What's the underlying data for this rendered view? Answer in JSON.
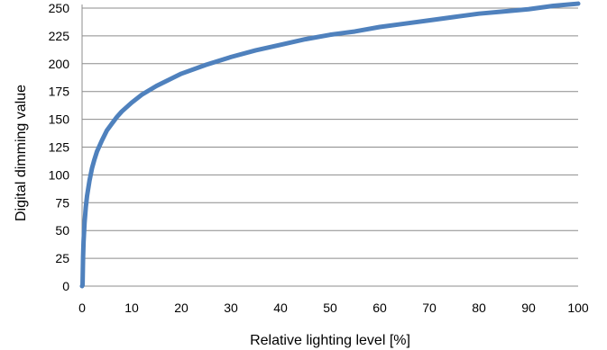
{
  "chart_data": {
    "type": "line",
    "title": "",
    "xlabel": "Relative lighting level [%]",
    "ylabel": "Digital dimming value",
    "xlim": [
      0,
      100
    ],
    "ylim": [
      0,
      250
    ],
    "xticks": [
      "0",
      "10",
      "20",
      "30",
      "40",
      "50",
      "60",
      "70",
      "80",
      "90",
      "100"
    ],
    "yticks": [
      "0",
      "25",
      "50",
      "75",
      "100",
      "125",
      "150",
      "175",
      "200",
      "225",
      "250"
    ],
    "grid": true,
    "legend": "none",
    "series": [
      {
        "color": "#4f81bd",
        "points": [
          [
            0.0,
            0
          ],
          [
            0.1,
            1
          ],
          [
            0.2,
            26
          ],
          [
            0.3,
            40
          ],
          [
            0.5,
            57
          ],
          [
            0.75,
            71
          ],
          [
            1,
            81
          ],
          [
            1.5,
            95
          ],
          [
            2,
            106
          ],
          [
            2.5,
            114
          ],
          [
            3,
            121
          ],
          [
            4,
            131
          ],
          [
            5,
            140
          ],
          [
            6,
            146
          ],
          [
            7,
            152
          ],
          [
            8,
            157
          ],
          [
            10,
            165
          ],
          [
            12,
            172
          ],
          [
            15,
            180
          ],
          [
            20,
            191
          ],
          [
            25,
            199
          ],
          [
            30,
            206
          ],
          [
            35,
            212
          ],
          [
            40,
            217
          ],
          [
            45,
            222
          ],
          [
            50,
            226
          ],
          [
            55,
            229
          ],
          [
            60,
            233
          ],
          [
            65,
            236
          ],
          [
            70,
            239
          ],
          [
            75,
            242
          ],
          [
            80,
            245
          ],
          [
            85,
            247
          ],
          [
            90,
            249
          ],
          [
            95,
            252
          ],
          [
            100,
            254
          ]
        ]
      }
    ]
  }
}
